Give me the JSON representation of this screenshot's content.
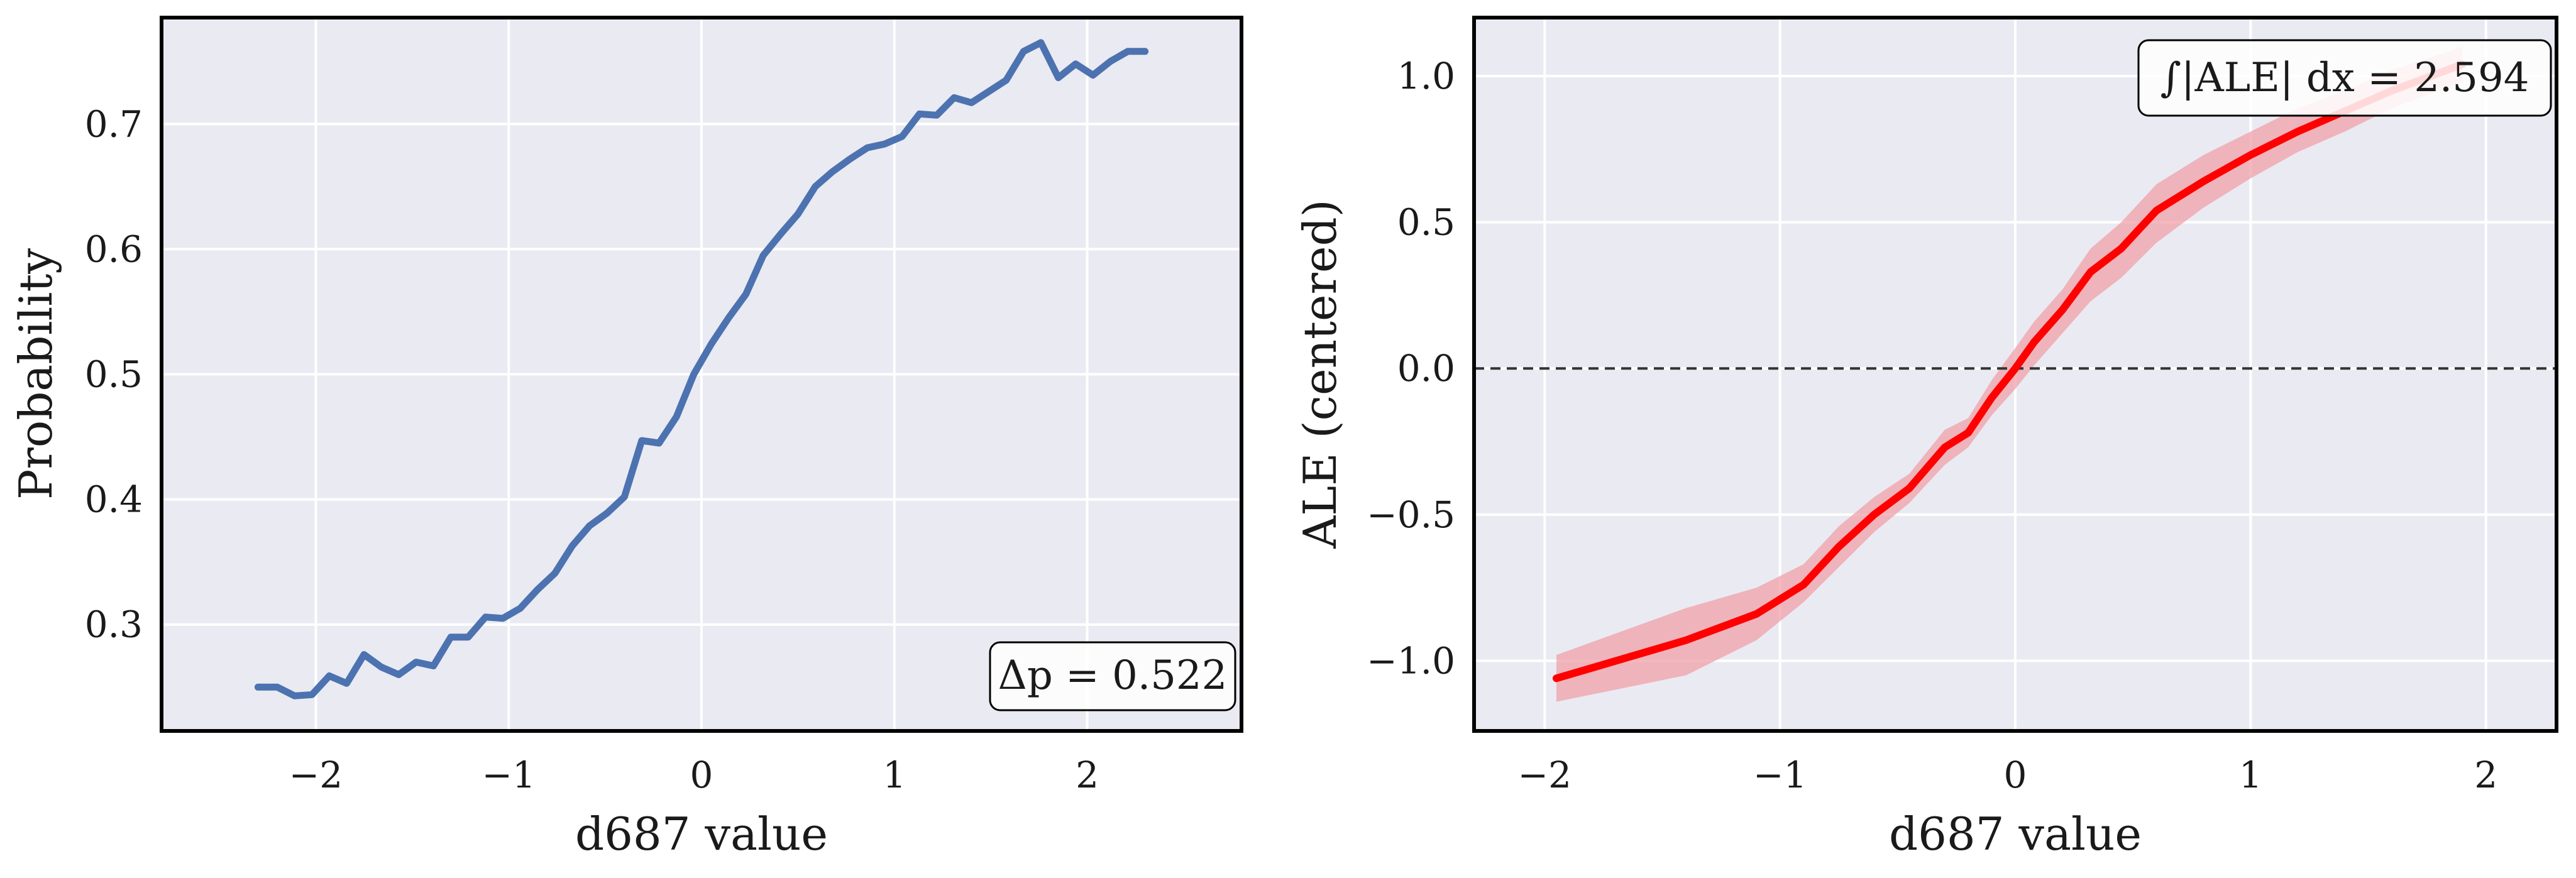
{
  "chart_data": [
    {
      "type": "line",
      "xlabel": "d687 value",
      "ylabel": "Probability",
      "xlim": [
        -2.8,
        2.8
      ],
      "ylim": [
        0.215,
        0.785
      ],
      "xticks": [
        -2,
        -1,
        0,
        1,
        2
      ],
      "xtick_labels": [
        "−2",
        "−1",
        "0",
        "1",
        "2"
      ],
      "yticks": [
        0.3,
        0.4,
        0.5,
        0.6,
        0.7
      ],
      "ytick_labels": [
        "0.3",
        "0.4",
        "0.5",
        "0.6",
        "0.7"
      ],
      "grid": true,
      "annotation": "Δp = 0.522",
      "annotation_placement": "bottom-right",
      "line_color": "#4c72b0",
      "background_color": "#eaeaf2",
      "series": [
        {
          "x": [
            -2.3,
            -2.2,
            -2.11,
            -2.02,
            -1.93,
            -1.84,
            -1.75,
            -1.66,
            -1.57,
            -1.48,
            -1.39,
            -1.3,
            -1.21,
            -1.12,
            -1.03,
            -0.94,
            -0.85,
            -0.76,
            -0.67,
            -0.58,
            -0.49,
            -0.4,
            -0.31,
            -0.22,
            -0.13,
            -0.04,
            0.05,
            0.14,
            0.23,
            0.32,
            0.41,
            0.5,
            0.59,
            0.68,
            0.77,
            0.86,
            0.95,
            1.04,
            1.13,
            1.22,
            1.31,
            1.4,
            1.49,
            1.58,
            1.67,
            1.76,
            1.85,
            1.94,
            2.03,
            2.12,
            2.21,
            2.3
          ],
          "values": [
            0.25,
            0.25,
            0.243,
            0.244,
            0.259,
            0.253,
            0.276,
            0.266,
            0.26,
            0.27,
            0.267,
            0.29,
            0.29,
            0.306,
            0.305,
            0.313,
            0.328,
            0.341,
            0.363,
            0.379,
            0.389,
            0.402,
            0.447,
            0.445,
            0.466,
            0.5,
            0.524,
            0.545,
            0.564,
            0.595,
            0.612,
            0.628,
            0.65,
            0.662,
            0.672,
            0.681,
            0.684,
            0.69,
            0.708,
            0.707,
            0.721,
            0.717,
            0.726,
            0.735,
            0.758,
            0.765,
            0.737,
            0.748,
            0.739,
            0.75,
            0.758,
            0.758
          ]
        }
      ]
    },
    {
      "type": "line",
      "xlabel": "d687 value",
      "ylabel": "ALE (centered)",
      "xlim": [
        -2.3,
        2.3
      ],
      "ylim": [
        -1.24,
        1.2
      ],
      "xticks": [
        -2,
        -1,
        0,
        1,
        2
      ],
      "xtick_labels": [
        "−2",
        "−1",
        "0",
        "1",
        "2"
      ],
      "yticks": [
        -1.0,
        -0.5,
        0.0,
        0.5,
        1.0
      ],
      "ytick_labels": [
        "−1.0",
        "−0.5",
        "0.0",
        "0.5",
        "1.0"
      ],
      "grid": true,
      "reference_line": 0,
      "annotation": "∫|ALE| dx = 2.594",
      "annotation_placement": "top-right",
      "line_color": "#ff0000",
      "band_color": "#f0a0a8",
      "background_color": "#eaeaf2",
      "series": [
        {
          "x": [
            -1.95,
            -1.4,
            -1.1,
            -0.9,
            -0.75,
            -0.6,
            -0.45,
            -0.3,
            -0.2,
            -0.1,
            0.0,
            0.08,
            0.2,
            0.32,
            0.45,
            0.6,
            0.8,
            1.0,
            1.2,
            1.4,
            1.6,
            1.9
          ],
          "values": [
            -1.06,
            -0.93,
            -0.84,
            -0.74,
            -0.61,
            -0.5,
            -0.41,
            -0.27,
            -0.22,
            -0.1,
            0.0,
            0.09,
            0.2,
            0.33,
            0.41,
            0.54,
            0.64,
            0.73,
            0.81,
            0.88,
            0.95,
            1.04
          ],
          "lower": [
            -1.14,
            -1.05,
            -0.93,
            -0.8,
            -0.68,
            -0.56,
            -0.46,
            -0.33,
            -0.27,
            -0.16,
            -0.07,
            0.01,
            0.12,
            0.23,
            0.31,
            0.43,
            0.55,
            0.65,
            0.74,
            0.81,
            0.89,
            0.98
          ],
          "upper": [
            -0.98,
            -0.82,
            -0.75,
            -0.67,
            -0.54,
            -0.44,
            -0.36,
            -0.21,
            -0.17,
            -0.04,
            0.07,
            0.16,
            0.27,
            0.41,
            0.5,
            0.63,
            0.73,
            0.81,
            0.89,
            0.95,
            1.02,
            1.1
          ]
        }
      ]
    }
  ]
}
